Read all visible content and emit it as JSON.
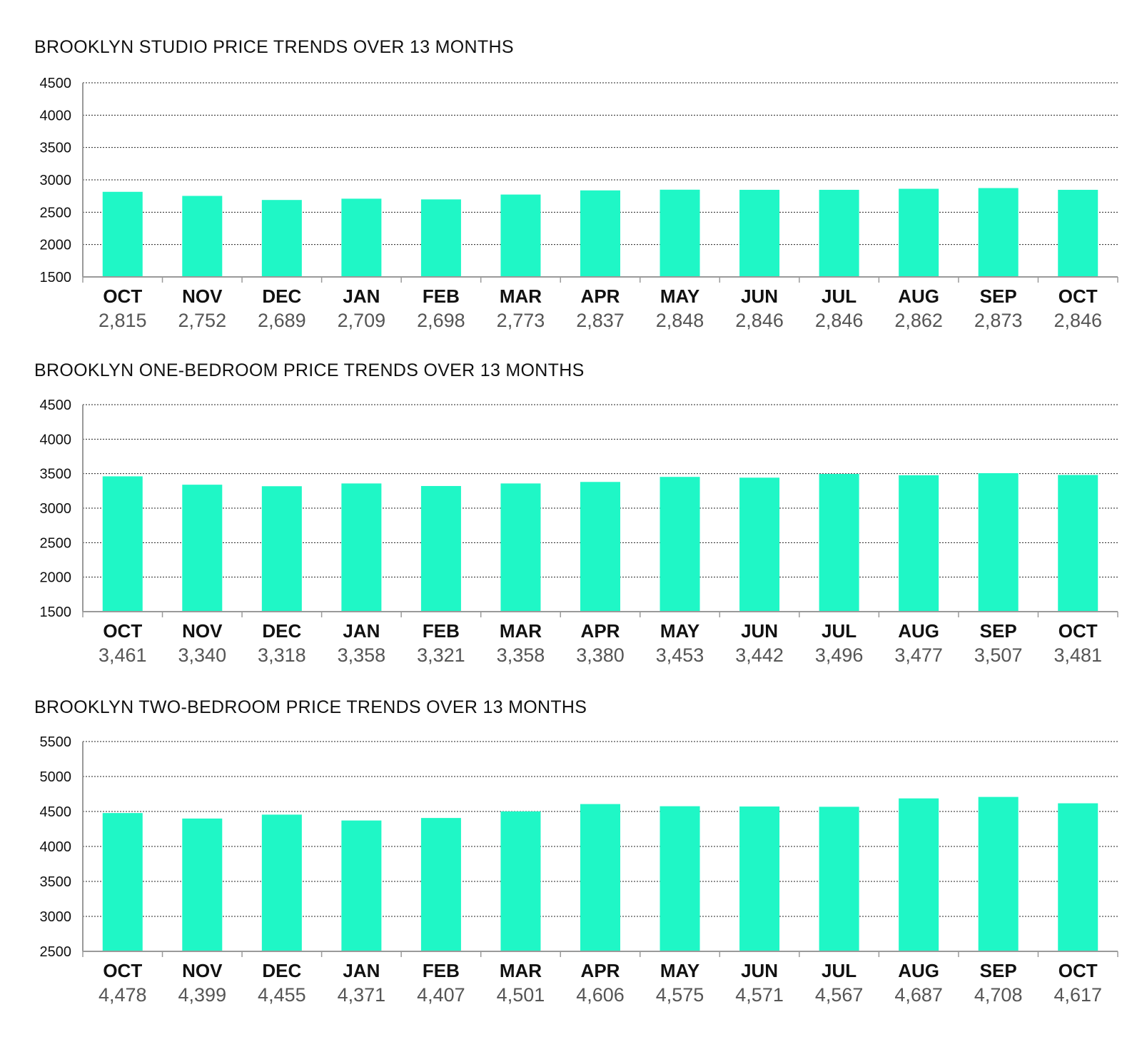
{
  "colors": {
    "bar": "#1ff7c6",
    "text": "#111111",
    "value_label": "#555555",
    "axis": "#9a9a9a"
  },
  "chart_data": [
    {
      "type": "bar",
      "title": "BROOKLYN STUDIO PRICE TRENDS OVER 13 MONTHS",
      "categories": [
        "OCT",
        "NOV",
        "DEC",
        "JAN",
        "FEB",
        "MAR",
        "APR",
        "MAY",
        "JUN",
        "JUL",
        "AUG",
        "SEP",
        "OCT"
      ],
      "values": [
        2815,
        2752,
        2689,
        2709,
        2698,
        2773,
        2837,
        2848,
        2846,
        2846,
        2862,
        2873,
        2846
      ],
      "value_labels": [
        "2,815",
        "2,752",
        "2,689",
        "2,709",
        "2,698",
        "2,773",
        "2,837",
        "2,848",
        "2,846",
        "2,846",
        "2,862",
        "2,873",
        "2,846"
      ],
      "yticks": [
        1500,
        2000,
        2500,
        3000,
        3500,
        4000,
        4500
      ],
      "ylim": [
        1500,
        4500
      ],
      "xlabel": "",
      "ylabel": "",
      "grid": true
    },
    {
      "type": "bar",
      "title": "BROOKLYN ONE-BEDROOM PRICE TRENDS OVER 13 MONTHS",
      "categories": [
        "OCT",
        "NOV",
        "DEC",
        "JAN",
        "FEB",
        "MAR",
        "APR",
        "MAY",
        "JUN",
        "JUL",
        "AUG",
        "SEP",
        "OCT"
      ],
      "values": [
        3461,
        3340,
        3318,
        3358,
        3321,
        3358,
        3380,
        3453,
        3442,
        3496,
        3477,
        3507,
        3481
      ],
      "value_labels": [
        "3,461",
        "3,340",
        "3,318",
        "3,358",
        "3,321",
        "3,358",
        "3,380",
        "3,453",
        "3,442",
        "3,496",
        "3,477",
        "3,507",
        "3,481"
      ],
      "yticks": [
        1500,
        2000,
        2500,
        3000,
        3500,
        4000,
        4500
      ],
      "ylim": [
        1500,
        4500
      ],
      "xlabel": "",
      "ylabel": "",
      "grid": true
    },
    {
      "type": "bar",
      "title": "BROOKLYN TWO-BEDROOM PRICE TRENDS OVER 13 MONTHS",
      "categories": [
        "OCT",
        "NOV",
        "DEC",
        "JAN",
        "FEB",
        "MAR",
        "APR",
        "MAY",
        "JUN",
        "JUL",
        "AUG",
        "SEP",
        "OCT"
      ],
      "values": [
        4478,
        4399,
        4455,
        4371,
        4407,
        4501,
        4606,
        4575,
        4571,
        4567,
        4687,
        4708,
        4617
      ],
      "value_labels": [
        "4,478",
        "4,399",
        "4,455",
        "4,371",
        "4,407",
        "4,501",
        "4,606",
        "4,575",
        "4,571",
        "4,567",
        "4,687",
        "4,708",
        "4,617"
      ],
      "yticks": [
        2500,
        3000,
        3500,
        4000,
        4500,
        5000,
        5500
      ],
      "ylim": [
        2500,
        5500
      ],
      "xlabel": "",
      "ylabel": "",
      "grid": true
    }
  ]
}
